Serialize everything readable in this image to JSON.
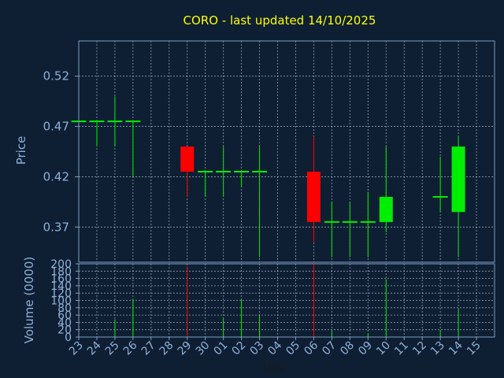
{
  "chart_data": {
    "type": "candlestick",
    "title": "CORO - last updated 14/10/2025",
    "colors": {
      "background": "#0e1f33",
      "axes": "#7f9cc0",
      "grid": "#b8c8dc",
      "title": "#ffff00",
      "up": "#00ee00",
      "down": "#ff0000",
      "label": "#8fb0d8"
    },
    "grid": true,
    "x": {
      "label": "Day",
      "ticks": [
        "23",
        "24",
        "25",
        "26",
        "27",
        "28",
        "29",
        "30",
        "01",
        "02",
        "03",
        "04",
        "05",
        "06",
        "07",
        "08",
        "09",
        "10",
        "11",
        "12",
        "13",
        "14",
        "15"
      ]
    },
    "price": {
      "ylabel": "Price",
      "ylim": [
        0.335,
        0.555
      ],
      "ticks": [
        0.37,
        0.42,
        0.47,
        0.52
      ],
      "tick_labels": [
        "0.37",
        "0.42",
        "0.47",
        "0.52"
      ],
      "candles": [
        {
          "day": "23",
          "open": 0.475,
          "high": 0.475,
          "low": 0.475,
          "close": 0.475
        },
        {
          "day": "24",
          "open": 0.475,
          "high": 0.475,
          "low": 0.45,
          "close": 0.475
        },
        {
          "day": "25",
          "open": 0.475,
          "high": 0.5,
          "low": 0.45,
          "close": 0.475
        },
        {
          "day": "26",
          "open": 0.475,
          "high": 0.475,
          "low": 0.42,
          "close": 0.475
        },
        {
          "day": "29",
          "open": 0.45,
          "high": 0.45,
          "low": 0.4,
          "close": 0.425
        },
        {
          "day": "30",
          "open": 0.425,
          "high": 0.425,
          "low": 0.4,
          "close": 0.425
        },
        {
          "day": "01",
          "open": 0.425,
          "high": 0.45,
          "low": 0.4,
          "close": 0.425
        },
        {
          "day": "02",
          "open": 0.425,
          "high": 0.425,
          "low": 0.41,
          "close": 0.425
        },
        {
          "day": "03",
          "open": 0.425,
          "high": 0.45,
          "low": 0.34,
          "close": 0.425
        },
        {
          "day": "06",
          "open": 0.425,
          "high": 0.46,
          "low": 0.355,
          "close": 0.375
        },
        {
          "day": "07",
          "open": 0.375,
          "high": 0.395,
          "low": 0.34,
          "close": 0.375
        },
        {
          "day": "08",
          "open": 0.375,
          "high": 0.395,
          "low": 0.34,
          "close": 0.375
        },
        {
          "day": "09",
          "open": 0.375,
          "high": 0.405,
          "low": 0.34,
          "close": 0.375
        },
        {
          "day": "10",
          "open": 0.375,
          "high": 0.45,
          "low": 0.365,
          "close": 0.4
        },
        {
          "day": "13",
          "open": 0.4,
          "high": 0.44,
          "low": 0.385,
          "close": 0.4
        },
        {
          "day": "14",
          "open": 0.385,
          "high": 0.46,
          "low": 0.34,
          "close": 0.45
        }
      ]
    },
    "volume": {
      "ylabel": "Volume (0000)",
      "ylim": [
        0,
        200
      ],
      "ticks": [
        0,
        20,
        40,
        60,
        80,
        100,
        120,
        140,
        160,
        180,
        200
      ],
      "tick_labels": [
        "0",
        "20",
        "40",
        "60",
        "80",
        "100",
        "120",
        "140",
        "160",
        "180",
        "200"
      ],
      "bars": [
        {
          "day": "25",
          "value": 48,
          "dir": "up"
        },
        {
          "day": "26",
          "value": 100,
          "dir": "up"
        },
        {
          "day": "29",
          "value": 192,
          "dir": "down"
        },
        {
          "day": "01",
          "value": 52,
          "dir": "up"
        },
        {
          "day": "02",
          "value": 102,
          "dir": "up"
        },
        {
          "day": "03",
          "value": 58,
          "dir": "up"
        },
        {
          "day": "06",
          "value": 200,
          "dir": "down"
        },
        {
          "day": "07",
          "value": 16,
          "dir": "up"
        },
        {
          "day": "09",
          "value": 10,
          "dir": "up"
        },
        {
          "day": "10",
          "value": 158,
          "dir": "up"
        },
        {
          "day": "13",
          "value": 18,
          "dir": "up"
        },
        {
          "day": "14",
          "value": 76,
          "dir": "up"
        }
      ]
    }
  }
}
